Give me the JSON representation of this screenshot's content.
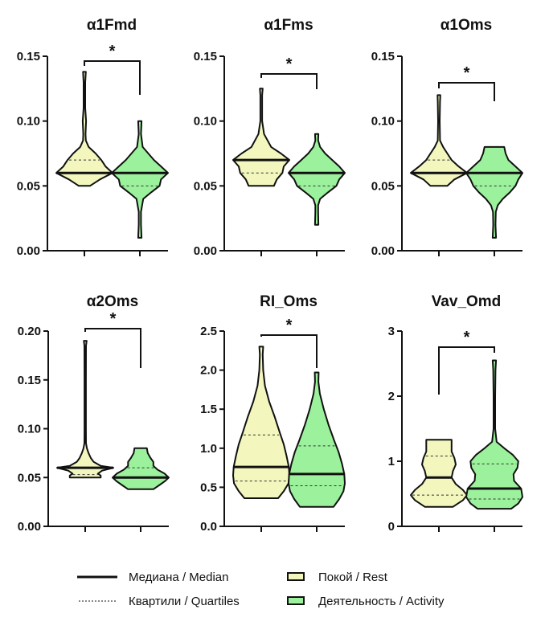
{
  "chart_data": [
    {
      "type": "violin",
      "title": "α1Fmd",
      "ylim": [
        0,
        0.15
      ],
      "yticks": [
        0.0,
        0.05,
        0.1,
        0.15
      ],
      "ytick_labels": [
        "0.00",
        "0.05",
        "0.10",
        "0.15"
      ],
      "significance": "*",
      "groups": [
        {
          "name": "Покой / Rest",
          "min": 0.05,
          "max": 0.138,
          "median": 0.06,
          "q1": 0.06,
          "q3": 0.07,
          "profile": [
            [
              0.05,
              0.2
            ],
            [
              0.055,
              0.55
            ],
            [
              0.06,
              1.0
            ],
            [
              0.065,
              0.75
            ],
            [
              0.07,
              0.6
            ],
            [
              0.075,
              0.4
            ],
            [
              0.08,
              0.15
            ],
            [
              0.085,
              0.05
            ],
            [
              0.09,
              0.04
            ],
            [
              0.1,
              0.06
            ],
            [
              0.11,
              0.03
            ],
            [
              0.13,
              0.03
            ],
            [
              0.138,
              0.05
            ]
          ]
        },
        {
          "name": "Деятельность / Activity",
          "min": 0.01,
          "max": 0.1,
          "median": 0.06,
          "q1": 0.05,
          "q3": 0.06,
          "profile": [
            [
              0.01,
              0.06
            ],
            [
              0.02,
              0.04
            ],
            [
              0.03,
              0.04
            ],
            [
              0.04,
              0.12
            ],
            [
              0.045,
              0.4
            ],
            [
              0.05,
              0.7
            ],
            [
              0.055,
              0.75
            ],
            [
              0.06,
              1.0
            ],
            [
              0.065,
              0.75
            ],
            [
              0.07,
              0.5
            ],
            [
              0.075,
              0.3
            ],
            [
              0.08,
              0.1
            ],
            [
              0.09,
              0.04
            ],
            [
              0.1,
              0.06
            ]
          ]
        }
      ]
    },
    {
      "type": "violin",
      "title": "α1Fms",
      "ylim": [
        0,
        0.15
      ],
      "yticks": [
        0.0,
        0.05,
        0.1,
        0.15
      ],
      "ytick_labels": [
        "0.00",
        "0.05",
        "0.10",
        "0.15"
      ],
      "significance": "*",
      "groups": [
        {
          "name": "Покой / Rest",
          "min": 0.05,
          "max": 0.125,
          "median": 0.07,
          "q1": 0.06,
          "q3": 0.07,
          "profile": [
            [
              0.05,
              0.45
            ],
            [
              0.055,
              0.55
            ],
            [
              0.06,
              0.75
            ],
            [
              0.065,
              0.8
            ],
            [
              0.07,
              1.0
            ],
            [
              0.075,
              0.7
            ],
            [
              0.08,
              0.35
            ],
            [
              0.09,
              0.1
            ],
            [
              0.1,
              0.03
            ],
            [
              0.12,
              0.03
            ],
            [
              0.125,
              0.05
            ]
          ]
        },
        {
          "name": "Деятельность / Activity",
          "min": 0.02,
          "max": 0.09,
          "median": 0.06,
          "q1": 0.05,
          "q3": 0.06,
          "profile": [
            [
              0.02,
              0.06
            ],
            [
              0.03,
              0.05
            ],
            [
              0.035,
              0.05
            ],
            [
              0.04,
              0.12
            ],
            [
              0.045,
              0.4
            ],
            [
              0.05,
              0.7
            ],
            [
              0.055,
              0.8
            ],
            [
              0.06,
              1.0
            ],
            [
              0.065,
              0.8
            ],
            [
              0.07,
              0.55
            ],
            [
              0.075,
              0.3
            ],
            [
              0.08,
              0.12
            ],
            [
              0.085,
              0.05
            ],
            [
              0.09,
              0.06
            ]
          ]
        }
      ]
    },
    {
      "type": "violin",
      "title": "α1Oms",
      "ylim": [
        0,
        0.15
      ],
      "yticks": [
        0.0,
        0.05,
        0.1,
        0.15
      ],
      "ytick_labels": [
        "0.00",
        "0.05",
        "0.10",
        "0.15"
      ],
      "significance": "*",
      "groups": [
        {
          "name": "Покой / Rest",
          "min": 0.05,
          "max": 0.12,
          "median": 0.06,
          "q1": 0.06,
          "q3": 0.07,
          "profile": [
            [
              0.05,
              0.3
            ],
            [
              0.055,
              0.55
            ],
            [
              0.06,
              1.0
            ],
            [
              0.065,
              0.7
            ],
            [
              0.07,
              0.45
            ],
            [
              0.075,
              0.3
            ],
            [
              0.08,
              0.15
            ],
            [
              0.085,
              0.04
            ],
            [
              0.1,
              0.03
            ],
            [
              0.115,
              0.04
            ],
            [
              0.12,
              0.05
            ]
          ]
        },
        {
          "name": "Деятельность / Activity",
          "min": 0.01,
          "max": 0.08,
          "median": 0.06,
          "q1": 0.05,
          "q3": 0.06,
          "profile": [
            [
              0.01,
              0.06
            ],
            [
              0.02,
              0.04
            ],
            [
              0.03,
              0.05
            ],
            [
              0.035,
              0.12
            ],
            [
              0.04,
              0.3
            ],
            [
              0.045,
              0.55
            ],
            [
              0.05,
              0.75
            ],
            [
              0.055,
              0.85
            ],
            [
              0.06,
              1.0
            ],
            [
              0.065,
              0.75
            ],
            [
              0.07,
              0.5
            ],
            [
              0.075,
              0.4
            ],
            [
              0.08,
              0.35
            ]
          ]
        }
      ]
    },
    {
      "type": "violin",
      "title": "α2Oms",
      "ylim": [
        0,
        0.2
      ],
      "yticks": [
        0.0,
        0.05,
        0.1,
        0.15,
        0.2
      ],
      "ytick_labels": [
        "0.00",
        "0.05",
        "0.10",
        "0.15",
        "0.20"
      ],
      "significance": "*",
      "groups": [
        {
          "name": "Покой / Rest",
          "min": 0.05,
          "max": 0.19,
          "median": 0.06,
          "q1": 0.053,
          "q3": 0.06,
          "profile": [
            [
              0.05,
              0.55
            ],
            [
              0.052,
              0.55
            ],
            [
              0.054,
              0.45
            ],
            [
              0.057,
              0.6
            ],
            [
              0.06,
              1.0
            ],
            [
              0.062,
              0.55
            ],
            [
              0.066,
              0.3
            ],
            [
              0.07,
              0.2
            ],
            [
              0.075,
              0.12
            ],
            [
              0.08,
              0.06
            ],
            [
              0.085,
              0.03
            ],
            [
              0.1,
              0.025
            ],
            [
              0.15,
              0.025
            ],
            [
              0.185,
              0.03
            ],
            [
              0.19,
              0.05
            ]
          ]
        },
        {
          "name": "Деятельность / Activity",
          "min": 0.038,
          "max": 0.08,
          "median": 0.05,
          "q1": 0.05,
          "q3": 0.06,
          "profile": [
            [
              0.038,
              0.45
            ],
            [
              0.042,
              0.65
            ],
            [
              0.046,
              0.85
            ],
            [
              0.05,
              1.0
            ],
            [
              0.054,
              0.85
            ],
            [
              0.058,
              0.6
            ],
            [
              0.062,
              0.45
            ],
            [
              0.066,
              0.45
            ],
            [
              0.07,
              0.35
            ],
            [
              0.075,
              0.25
            ],
            [
              0.08,
              0.22
            ]
          ]
        }
      ]
    },
    {
      "type": "violin",
      "title": "RI_Oms",
      "ylim": [
        0,
        2.5
      ],
      "yticks": [
        0.0,
        0.5,
        1.0,
        1.5,
        2.0,
        2.5
      ],
      "ytick_labels": [
        "0.0",
        "0.5",
        "1.0",
        "1.5",
        "2.0",
        "2.5"
      ],
      "significance": "*",
      "groups": [
        {
          "name": "Покой / Rest",
          "min": 0.36,
          "max": 2.3,
          "median": 0.76,
          "q1": 0.58,
          "q3": 1.17,
          "profile": [
            [
              0.36,
              0.6
            ],
            [
              0.45,
              0.8
            ],
            [
              0.55,
              0.97
            ],
            [
              0.65,
              1.0
            ],
            [
              0.76,
              0.98
            ],
            [
              0.9,
              0.9
            ],
            [
              1.05,
              0.8
            ],
            [
              1.2,
              0.66
            ],
            [
              1.4,
              0.48
            ],
            [
              1.6,
              0.28
            ],
            [
              1.8,
              0.13
            ],
            [
              2.0,
              0.07
            ],
            [
              2.2,
              0.05
            ],
            [
              2.3,
              0.07
            ]
          ]
        },
        {
          "name": "Деятельность / Activity",
          "min": 0.25,
          "max": 1.97,
          "median": 0.67,
          "q1": 0.52,
          "q3": 1.03,
          "profile": [
            [
              0.25,
              0.6
            ],
            [
              0.35,
              0.8
            ],
            [
              0.45,
              0.95
            ],
            [
              0.55,
              1.0
            ],
            [
              0.67,
              0.98
            ],
            [
              0.8,
              0.9
            ],
            [
              0.95,
              0.78
            ],
            [
              1.1,
              0.62
            ],
            [
              1.3,
              0.42
            ],
            [
              1.5,
              0.25
            ],
            [
              1.7,
              0.11
            ],
            [
              1.85,
              0.06
            ],
            [
              1.97,
              0.07
            ]
          ]
        }
      ]
    },
    {
      "type": "violin",
      "title": "Vav_Omd",
      "ylim": [
        0,
        3
      ],
      "yticks": [
        0,
        1,
        2,
        3
      ],
      "ytick_labels": [
        "0",
        "1",
        "2",
        "3"
      ],
      "significance": "*",
      "groups": [
        {
          "name": "Покой / Rest",
          "min": 0.3,
          "max": 1.33,
          "median": 0.75,
          "q1": 0.48,
          "q3": 1.08,
          "profile": [
            [
              0.3,
              0.5
            ],
            [
              0.4,
              0.85
            ],
            [
              0.48,
              1.0
            ],
            [
              0.56,
              0.85
            ],
            [
              0.65,
              0.6
            ],
            [
              0.75,
              0.45
            ],
            [
              0.85,
              0.5
            ],
            [
              0.95,
              0.6
            ],
            [
              1.05,
              0.55
            ],
            [
              1.15,
              0.45
            ],
            [
              1.25,
              0.45
            ],
            [
              1.33,
              0.45
            ]
          ]
        },
        {
          "name": "Деятельность / Activity",
          "min": 0.27,
          "max": 2.55,
          "median": 0.58,
          "q1": 0.42,
          "q3": 0.96,
          "profile": [
            [
              0.27,
              0.6
            ],
            [
              0.35,
              0.85
            ],
            [
              0.45,
              1.0
            ],
            [
              0.58,
              0.95
            ],
            [
              0.7,
              0.7
            ],
            [
              0.8,
              0.68
            ],
            [
              0.9,
              0.82
            ],
            [
              1.0,
              0.85
            ],
            [
              1.1,
              0.65
            ],
            [
              1.2,
              0.35
            ],
            [
              1.3,
              0.08
            ],
            [
              1.5,
              0.03
            ],
            [
              2.0,
              0.03
            ],
            [
              2.4,
              0.04
            ],
            [
              2.55,
              0.06
            ]
          ]
        }
      ]
    }
  ],
  "colors": {
    "rest": "#f3f7bd",
    "activity": "#9cf29c",
    "line": "#111111"
  },
  "legend": {
    "median_label": "Медиана / Median",
    "quartiles_label": "Квартили / Quartiles",
    "rest_label": "Покой / Rest",
    "activity_label": "Деятельность / Activity"
  }
}
